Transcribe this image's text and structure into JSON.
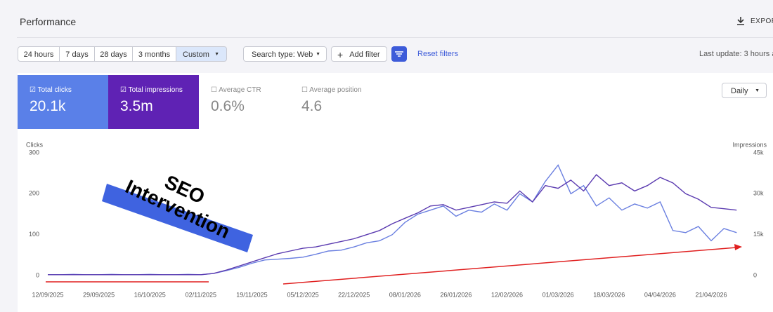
{
  "header": {
    "title": "Performance",
    "export": "EXPOR"
  },
  "toolbar": {
    "ranges": [
      "24 hours",
      "7 days",
      "28 days",
      "3 months",
      "Custom"
    ],
    "search_type": "Search type: Web",
    "add_filter": "Add filter",
    "reset": "Reset filters",
    "last_update": "Last update: 3 hours a"
  },
  "metrics": [
    {
      "label": "Total clicks",
      "value": "20.1k"
    },
    {
      "label": "Total impressions",
      "value": "3.5m"
    },
    {
      "label": "Average CTR",
      "value": "0.6%"
    },
    {
      "label": "Average position",
      "value": "4.6"
    }
  ],
  "granularity": "Daily",
  "chart_data": {
    "type": "line",
    "ylabel": "Clicks",
    "y2label": "Impressions",
    "annotation": [
      "SEO",
      "Intervention"
    ],
    "categories": [
      "12/09/2025",
      null,
      null,
      null,
      "29/09/2025",
      null,
      null,
      null,
      "16/10/2025",
      null,
      null,
      null,
      "02/11/2025",
      null,
      null,
      null,
      "19/11/2025",
      null,
      null,
      null,
      "05/12/2025",
      null,
      null,
      null,
      "22/12/2025",
      null,
      null,
      null,
      "08/01/2026",
      null,
      null,
      null,
      "26/01/2026",
      null,
      null,
      null,
      "12/02/2026",
      null,
      null,
      null,
      "01/03/2026",
      null,
      null,
      null,
      "18/03/2026",
      null,
      null,
      null,
      "04/04/2026",
      null,
      null,
      null,
      "21/04/2026",
      null,
      null
    ],
    "ylim": [
      0,
      300
    ],
    "yticks": [
      0,
      100,
      200,
      300
    ],
    "y2lim": [
      0,
      45000
    ],
    "y2ticks": [
      0,
      {
        "value": 15000,
        "label": "15k"
      },
      {
        "value": 30000,
        "label": "30k"
      },
      {
        "value": 45000,
        "label": "45k"
      }
    ],
    "grid": false,
    "series": [
      {
        "name": "Clicks",
        "color": "#6a7fe0",
        "values": [
          2,
          2,
          3,
          2,
          2,
          3,
          2,
          2,
          3,
          2,
          2,
          3,
          2,
          5,
          12,
          20,
          30,
          38,
          40,
          42,
          45,
          52,
          60,
          62,
          70,
          80,
          85,
          100,
          130,
          150,
          160,
          170,
          145,
          160,
          155,
          175,
          160,
          200,
          180,
          230,
          270,
          200,
          220,
          170,
          190,
          160,
          175,
          165,
          180,
          110,
          105,
          120,
          85,
          115,
          105
        ]
      },
      {
        "name": "Impressions",
        "color": "#5b3bb0",
        "axis": "y2",
        "values": [
          300,
          300,
          300,
          300,
          300,
          300,
          300,
          300,
          300,
          300,
          300,
          300,
          300,
          800,
          2000,
          3500,
          5000,
          6500,
          8000,
          9000,
          10000,
          10500,
          11500,
          12500,
          13500,
          15000,
          16500,
          19000,
          21000,
          23000,
          25500,
          26000,
          24000,
          25000,
          26000,
          27000,
          26500,
          31000,
          27000,
          33000,
          32000,
          35000,
          31000,
          37000,
          33000,
          34000,
          31000,
          33000,
          36000,
          34000,
          30000,
          28000,
          25000,
          24500,
          24000
        ]
      }
    ]
  }
}
